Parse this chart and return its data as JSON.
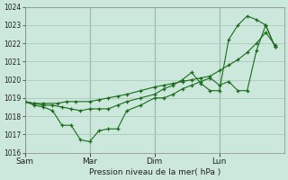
{
  "title": "",
  "xlabel": "Pression niveau de la mer( hPa )",
  "ylabel": "",
  "bg_color": "#cce8dd",
  "grid_color": "#aaccbb",
  "line_color": "#1a6b1a",
  "marker": "+",
  "ylim": [
    1016,
    1024
  ],
  "yticks": [
    1016,
    1017,
    1018,
    1019,
    1020,
    1021,
    1022,
    1023,
    1024
  ],
  "day_labels": [
    "Sam",
    "Mar",
    "Dim",
    "Lun"
  ],
  "day_positions": [
    0,
    28,
    56,
    84
  ],
  "xlim": [
    0,
    112
  ],
  "series": [
    {
      "x": [
        0,
        4,
        8,
        14,
        18,
        22,
        28,
        32,
        36,
        40,
        44,
        50,
        56,
        60,
        64,
        68,
        72,
        76,
        80,
        84,
        88,
        92,
        96,
        100,
        104,
        108
      ],
      "y": [
        1018.8,
        1018.7,
        1018.7,
        1018.7,
        1018.8,
        1018.8,
        1018.8,
        1018.9,
        1019.0,
        1019.1,
        1019.2,
        1019.4,
        1019.6,
        1019.7,
        1019.8,
        1019.9,
        1020.0,
        1020.1,
        1020.2,
        1020.5,
        1020.8,
        1021.1,
        1021.5,
        1022.0,
        1022.6,
        1021.9
      ]
    },
    {
      "x": [
        0,
        4,
        8,
        12,
        16,
        20,
        24,
        28,
        32,
        36,
        40,
        44,
        50,
        56,
        60,
        64,
        68,
        72,
        76,
        80,
        84,
        88,
        92,
        96,
        100,
        104,
        108
      ],
      "y": [
        1018.8,
        1018.6,
        1018.5,
        1018.3,
        1017.5,
        1017.5,
        1016.7,
        1016.6,
        1017.2,
        1017.3,
        1017.3,
        1018.3,
        1018.6,
        1019.0,
        1019.0,
        1019.2,
        1019.5,
        1019.7,
        1019.9,
        1020.1,
        1019.7,
        1019.9,
        1019.4,
        1019.4,
        1021.6,
        1023.0,
        1021.8
      ]
    },
    {
      "x": [
        0,
        4,
        8,
        12,
        16,
        20,
        24,
        28,
        32,
        36,
        40,
        44,
        50,
        56,
        60,
        64,
        68,
        72,
        76,
        80,
        84,
        88,
        92,
        96,
        100,
        104,
        108
      ],
      "y": [
        1018.8,
        1018.7,
        1018.6,
        1018.6,
        1018.5,
        1018.4,
        1018.3,
        1018.4,
        1018.4,
        1018.4,
        1018.6,
        1018.8,
        1019.0,
        1019.2,
        1019.5,
        1019.7,
        1020.0,
        1020.4,
        1019.8,
        1019.4,
        1019.4,
        1022.2,
        1023.0,
        1023.5,
        1023.3,
        1023.0,
        1021.8
      ]
    }
  ],
  "figsize": [
    3.2,
    2.0
  ],
  "dpi": 100
}
